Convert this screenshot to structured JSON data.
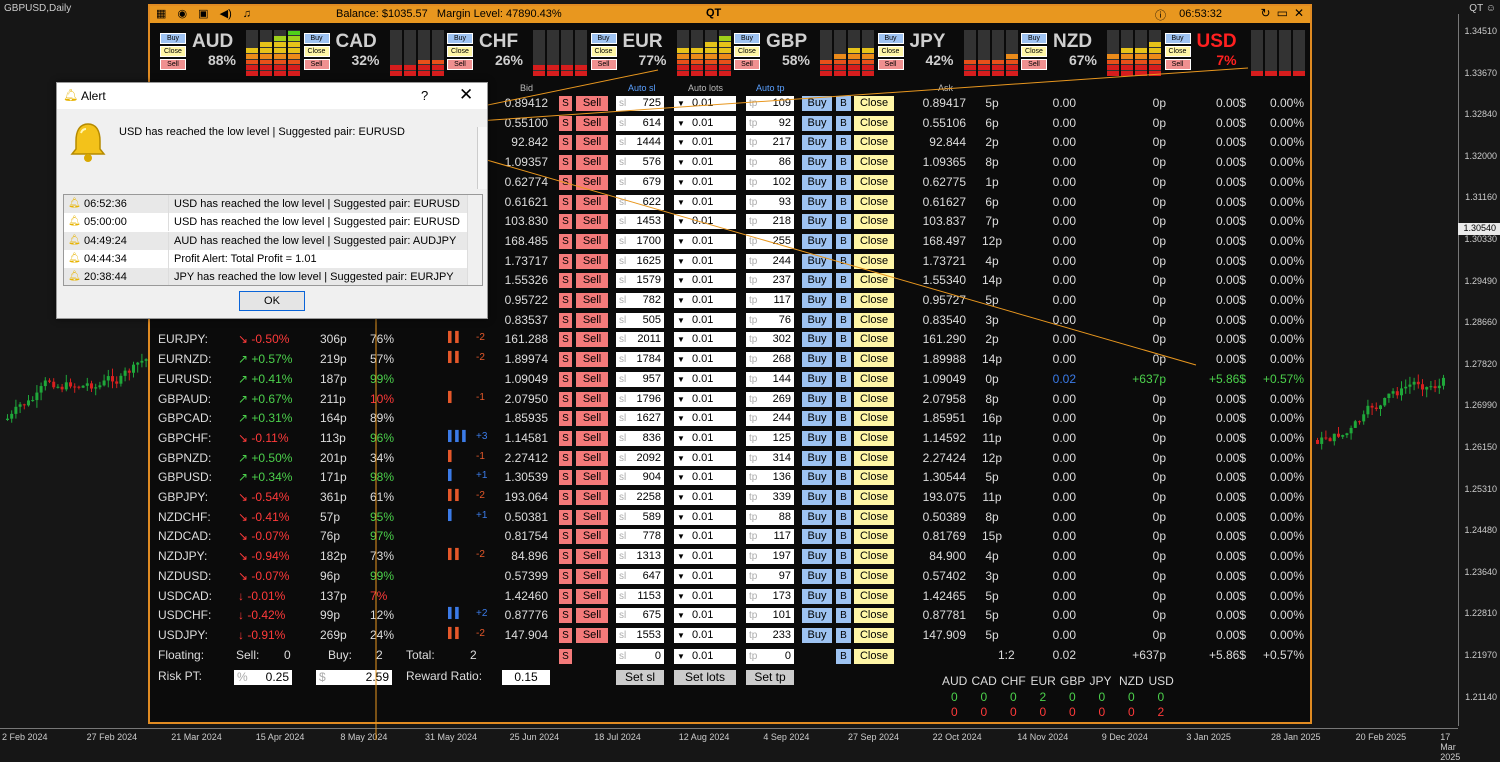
{
  "chart": {
    "symbol": "GBPUSD,Daily",
    "top_right": "QT ☺",
    "current_price": "1.30540",
    "prices": [
      "1.34510",
      "1.33670",
      "1.32840",
      "1.32000",
      "1.31160",
      "1.30330",
      "1.29490",
      "1.28660",
      "1.27820",
      "1.26990",
      "1.26150",
      "1.25310",
      "1.24480",
      "1.23640",
      "1.22810",
      "1.21970",
      "1.21140"
    ],
    "dates": [
      "2 Feb 2024",
      "27 Feb 2024",
      "21 Mar 2024",
      "15 Apr 2024",
      "8 May 2024",
      "31 May 2024",
      "25 Jun 2024",
      "18 Jul 2024",
      "12 Aug 2024",
      "4 Sep 2024",
      "27 Sep 2024",
      "22 Oct 2024",
      "14 Nov 2024",
      "9 Dec 2024",
      "3 Jan 2025",
      "28 Jan 2025",
      "20 Feb 2025",
      "17 Mar 2025"
    ]
  },
  "titlebar": {
    "balance": "Balance: $1035.57",
    "margin": "Margin Level: 47890.43%",
    "title": "QT",
    "clock": "06:53:32"
  },
  "currencies": [
    {
      "name": "AUD",
      "pct": "88%",
      "level": 0.88,
      "alert": false
    },
    {
      "name": "CAD",
      "pct": "32%",
      "level": 0.32,
      "alert": false
    },
    {
      "name": "CHF",
      "pct": "26%",
      "level": 0.26,
      "alert": false
    },
    {
      "name": "EUR",
      "pct": "77%",
      "level": 0.77,
      "alert": false
    },
    {
      "name": "GBP",
      "pct": "58%",
      "level": 0.58,
      "alert": false
    },
    {
      "name": "JPY",
      "pct": "42%",
      "level": 0.42,
      "alert": false
    },
    {
      "name": "NZD",
      "pct": "67%",
      "level": 0.67,
      "alert": false
    },
    {
      "name": "USD",
      "pct": "7%",
      "level": 0.07,
      "alert": true
    }
  ],
  "mini_buttons": {
    "buy": "Buy",
    "close": "Close",
    "sell": "Sell"
  },
  "headers": {
    "bid": "Bid",
    "auto_sl": "Auto sl",
    "auto_lots": "Auto lots",
    "auto_tp": "Auto tp",
    "ask": "Ask"
  },
  "labels": {
    "s": "S",
    "sell": "Sell",
    "sl": "sl",
    "tp": "tp",
    "buy": "Buy",
    "b": "B",
    "close": "Close"
  },
  "rows": [
    {
      "pair": "",
      "chg": "",
      "dir": "",
      "pips": "",
      "ratio": "",
      "str": "",
      "strn": "",
      "bid": "0.89412",
      "sl": "725",
      "lots": "0.01",
      "tp": "109",
      "ask": "0.89417",
      "spread": "5p",
      "profit": "0.00",
      "pippl": "0p",
      "money": "0.00$",
      "pct": "0.00%"
    },
    {
      "pair": "",
      "chg": "",
      "dir": "",
      "pips": "",
      "ratio": "",
      "str": "",
      "strn": "",
      "bid": "0.55100",
      "sl": "614",
      "lots": "0.01",
      "tp": "92",
      "ask": "0.55106",
      "spread": "6p",
      "profit": "0.00",
      "pippl": "0p",
      "money": "0.00$",
      "pct": "0.00%"
    },
    {
      "pair": "",
      "chg": "",
      "dir": "",
      "pips": "",
      "ratio": "",
      "str": "",
      "strn": "",
      "bid": "92.842",
      "sl": "1444",
      "lots": "0.01",
      "tp": "217",
      "ask": "92.844",
      "spread": "2p",
      "profit": "0.00",
      "pippl": "0p",
      "money": "0.00$",
      "pct": "0.00%"
    },
    {
      "pair": "",
      "chg": "",
      "dir": "",
      "pips": "",
      "ratio": "",
      "str": "",
      "strn": "",
      "bid": "1.09357",
      "sl": "576",
      "lots": "0.01",
      "tp": "86",
      "ask": "1.09365",
      "spread": "8p",
      "profit": "0.00",
      "pippl": "0p",
      "money": "0.00$",
      "pct": "0.00%"
    },
    {
      "pair": "",
      "chg": "",
      "dir": "",
      "pips": "",
      "ratio": "",
      "str": "",
      "strn": "",
      "bid": "0.62774",
      "sl": "679",
      "lots": "0.01",
      "tp": "102",
      "ask": "0.62775",
      "spread": "1p",
      "profit": "0.00",
      "pippl": "0p",
      "money": "0.00$",
      "pct": "0.00%"
    },
    {
      "pair": "",
      "chg": "",
      "dir": "",
      "pips": "",
      "ratio": "",
      "str": "",
      "strn": "",
      "bid": "0.61621",
      "sl": "622",
      "lots": "0.01",
      "tp": "93",
      "ask": "0.61627",
      "spread": "6p",
      "profit": "0.00",
      "pippl": "0p",
      "money": "0.00$",
      "pct": "0.00%"
    },
    {
      "pair": "",
      "chg": "",
      "dir": "",
      "pips": "",
      "ratio": "",
      "str": "",
      "strn": "",
      "bid": "103.830",
      "sl": "1453",
      "lots": "0.01",
      "tp": "218",
      "ask": "103.837",
      "spread": "7p",
      "profit": "0.00",
      "pippl": "0p",
      "money": "0.00$",
      "pct": "0.00%"
    },
    {
      "pair": "",
      "chg": "",
      "dir": "",
      "pips": "",
      "ratio": "",
      "str": "",
      "strn": "",
      "bid": "168.485",
      "sl": "1700",
      "lots": "0.01",
      "tp": "255",
      "ask": "168.497",
      "spread": "12p",
      "profit": "0.00",
      "pippl": "0p",
      "money": "0.00$",
      "pct": "0.00%"
    },
    {
      "pair": "",
      "chg": "",
      "dir": "",
      "pips": "",
      "ratio": "",
      "str": "",
      "strn": "",
      "bid": "1.73717",
      "sl": "1625",
      "lots": "0.01",
      "tp": "244",
      "ask": "1.73721",
      "spread": "4p",
      "profit": "0.00",
      "pippl": "0p",
      "money": "0.00$",
      "pct": "0.00%"
    },
    {
      "pair": "",
      "chg": "",
      "dir": "",
      "pips": "",
      "ratio": "",
      "str": "",
      "strn": "",
      "bid": "1.55326",
      "sl": "1579",
      "lots": "0.01",
      "tp": "237",
      "ask": "1.55340",
      "spread": "14p",
      "profit": "0.00",
      "pippl": "0p",
      "money": "0.00$",
      "pct": "0.00%"
    },
    {
      "pair": "",
      "chg": "",
      "dir": "",
      "pips": "",
      "ratio": "",
      "str": "",
      "strn": "",
      "bid": "0.95722",
      "sl": "782",
      "lots": "0.01",
      "tp": "117",
      "ask": "0.95727",
      "spread": "5p",
      "profit": "0.00",
      "pippl": "0p",
      "money": "0.00$",
      "pct": "0.00%"
    },
    {
      "pair": "",
      "chg": "",
      "dir": "",
      "pips": "",
      "ratio": "",
      "str": "",
      "strn": "",
      "bid": "0.83537",
      "sl": "505",
      "lots": "0.01",
      "tp": "76",
      "ask": "0.83540",
      "spread": "3p",
      "profit": "0.00",
      "pippl": "0p",
      "money": "0.00$",
      "pct": "0.00%"
    },
    {
      "pair": "EURJPY:",
      "chg": "-0.50%",
      "dir": "dn",
      "pips": "306p",
      "ratio": "76%",
      "str": "▌▌",
      "strn": "-2",
      "bid": "161.288",
      "sl": "2011",
      "lots": "0.01",
      "tp": "302",
      "ask": "161.290",
      "spread": "2p",
      "profit": "0.00",
      "pippl": "0p",
      "money": "0.00$",
      "pct": "0.00%"
    },
    {
      "pair": "EURNZD:",
      "chg": "+0.57%",
      "dir": "up",
      "pips": "219p",
      "ratio": "57%",
      "str": "▌▌",
      "strn": "-2",
      "bid": "1.89974",
      "sl": "1784",
      "lots": "0.01",
      "tp": "268",
      "ask": "1.89988",
      "spread": "14p",
      "profit": "0.00",
      "pippl": "0p",
      "money": "0.00$",
      "pct": "0.00%"
    },
    {
      "pair": "EURUSD:",
      "chg": "+0.41%",
      "dir": "up",
      "pips": "187p",
      "ratio": "99%",
      "str": "",
      "strn": "",
      "bid": "1.09049",
      "sl": "957",
      "lots": "0.01",
      "tp": "144",
      "ask": "1.09049",
      "spread": "0p",
      "profit": "0.02",
      "pippl": "+637p",
      "money": "+5.86$",
      "pct": "+0.57%",
      "hl": true
    },
    {
      "pair": "GBPAUD:",
      "chg": "+0.67%",
      "dir": "up",
      "pips": "211p",
      "ratio": "10%",
      "str": "▌",
      "strn": "-1",
      "bid": "2.07950",
      "sl": "1796",
      "lots": "0.01",
      "tp": "269",
      "ask": "2.07958",
      "spread": "8p",
      "profit": "0.00",
      "pippl": "0p",
      "money": "0.00$",
      "pct": "0.00%"
    },
    {
      "pair": "GBPCAD:",
      "chg": "+0.31%",
      "dir": "up",
      "pips": "164p",
      "ratio": "89%",
      "str": "",
      "strn": "",
      "bid": "1.85935",
      "sl": "1627",
      "lots": "0.01",
      "tp": "244",
      "ask": "1.85951",
      "spread": "16p",
      "profit": "0.00",
      "pippl": "0p",
      "money": "0.00$",
      "pct": "0.00%"
    },
    {
      "pair": "GBPCHF:",
      "chg": "-0.11%",
      "dir": "dn",
      "pips": "113p",
      "ratio": "96%",
      "str": "▌▌▌",
      "strn": "+3",
      "bid": "1.14581",
      "sl": "836",
      "lots": "0.01",
      "tp": "125",
      "ask": "1.14592",
      "spread": "11p",
      "profit": "0.00",
      "pippl": "0p",
      "money": "0.00$",
      "pct": "0.00%"
    },
    {
      "pair": "GBPNZD:",
      "chg": "+0.50%",
      "dir": "up",
      "pips": "201p",
      "ratio": "34%",
      "str": "▌",
      "strn": "-1",
      "bid": "2.27412",
      "sl": "2092",
      "lots": "0.01",
      "tp": "314",
      "ask": "2.27424",
      "spread": "12p",
      "profit": "0.00",
      "pippl": "0p",
      "money": "0.00$",
      "pct": "0.00%"
    },
    {
      "pair": "GBPUSD:",
      "chg": "+0.34%",
      "dir": "up",
      "pips": "171p",
      "ratio": "98%",
      "str": "▌",
      "strn": "+1",
      "bid": "1.30539",
      "sl": "904",
      "lots": "0.01",
      "tp": "136",
      "ask": "1.30544",
      "spread": "5p",
      "profit": "0.00",
      "pippl": "0p",
      "money": "0.00$",
      "pct": "0.00%"
    },
    {
      "pair": "GBPJPY:",
      "chg": "-0.54%",
      "dir": "dn",
      "pips": "361p",
      "ratio": "61%",
      "str": "▌▌",
      "strn": "-2",
      "bid": "193.064",
      "sl": "2258",
      "lots": "0.01",
      "tp": "339",
      "ask": "193.075",
      "spread": "11p",
      "profit": "0.00",
      "pippl": "0p",
      "money": "0.00$",
      "pct": "0.00%"
    },
    {
      "pair": "NZDCHF:",
      "chg": "-0.41%",
      "dir": "dn",
      "pips": "57p",
      "ratio": "95%",
      "str": "▌",
      "strn": "+1",
      "bid": "0.50381",
      "sl": "589",
      "lots": "0.01",
      "tp": "88",
      "ask": "0.50389",
      "spread": "8p",
      "profit": "0.00",
      "pippl": "0p",
      "money": "0.00$",
      "pct": "0.00%"
    },
    {
      "pair": "NZDCAD:",
      "chg": "-0.07%",
      "dir": "dn",
      "pips": "76p",
      "ratio": "97%",
      "str": "",
      "strn": "",
      "bid": "0.81754",
      "sl": "778",
      "lots": "0.01",
      "tp": "117",
      "ask": "0.81769",
      "spread": "15p",
      "profit": "0.00",
      "pippl": "0p",
      "money": "0.00$",
      "pct": "0.00%"
    },
    {
      "pair": "NZDJPY:",
      "chg": "-0.94%",
      "dir": "dn",
      "pips": "182p",
      "ratio": "73%",
      "str": "▌▌",
      "strn": "-2",
      "bid": "84.896",
      "sl": "1313",
      "lots": "0.01",
      "tp": "197",
      "ask": "84.900",
      "spread": "4p",
      "profit": "0.00",
      "pippl": "0p",
      "money": "0.00$",
      "pct": "0.00%"
    },
    {
      "pair": "NZDUSD:",
      "chg": "-0.07%",
      "dir": "dn",
      "pips": "96p",
      "ratio": "99%",
      "str": "",
      "strn": "",
      "bid": "0.57399",
      "sl": "647",
      "lots": "0.01",
      "tp": "97",
      "ask": "0.57402",
      "spread": "3p",
      "profit": "0.00",
      "pippl": "0p",
      "money": "0.00$",
      "pct": "0.00%"
    },
    {
      "pair": "USDCAD:",
      "chg": "-0.01%",
      "dir": "dd",
      "pips": "137p",
      "ratio": "7%",
      "str": "",
      "strn": "",
      "bid": "1.42460",
      "sl": "1153",
      "lots": "0.01",
      "tp": "173",
      "ask": "1.42465",
      "spread": "5p",
      "profit": "0.00",
      "pippl": "0p",
      "money": "0.00$",
      "pct": "0.00%"
    },
    {
      "pair": "USDCHF:",
      "chg": "-0.42%",
      "dir": "dd",
      "pips": "99p",
      "ratio": "12%",
      "str": "▌▌",
      "strn": "+2",
      "bid": "0.87776",
      "sl": "675",
      "lots": "0.01",
      "tp": "101",
      "ask": "0.87781",
      "spread": "5p",
      "profit": "0.00",
      "pippl": "0p",
      "money": "0.00$",
      "pct": "0.00%"
    },
    {
      "pair": "USDJPY:",
      "chg": "-0.91%",
      "dir": "dd",
      "pips": "269p",
      "ratio": "24%",
      "str": "▌▌",
      "strn": "-2",
      "bid": "147.904",
      "sl": "1553",
      "lots": "0.01",
      "tp": "233",
      "ask": "147.909",
      "spread": "5p",
      "profit": "0.00",
      "pippl": "0p",
      "money": "0.00$",
      "pct": "0.00%"
    }
  ],
  "footer": {
    "floating": "Floating:",
    "sell_label": "Sell:",
    "sell_val": "0",
    "buy_label": "Buy:",
    "buy_val": "2",
    "total_label": "Total:",
    "total_val": "2",
    "sl_val": "0",
    "lots_val": "0.01",
    "tp_val": "0",
    "ratio": "1:2",
    "profit": "0.02",
    "pippl": "+637p",
    "money": "+5.86$",
    "pct": "+0.57%",
    "risk_label": "Risk PT:",
    "risk_pct": "%",
    "risk_val": "0.25",
    "risk_dollar": "$",
    "risk_dollar_val": "2.59",
    "reward_label": "Reward Ratio:",
    "reward_val": "0.15",
    "set_sl": "Set sl",
    "set_lots": "Set lots",
    "set_tp": "Set tp"
  },
  "ccy_summary": {
    "names": [
      "AUD",
      "CAD",
      "CHF",
      "EUR",
      "GBP",
      "JPY",
      "NZD",
      "USD"
    ],
    "buy": [
      "0",
      "0",
      "0",
      "2",
      "0",
      "0",
      "0",
      "0"
    ],
    "sell": [
      "0",
      "0",
      "0",
      "0",
      "0",
      "0",
      "0",
      "2"
    ]
  },
  "alert": {
    "title": "Alert",
    "help": "?",
    "close": "✕",
    "message": "USD has reached the low level | Suggested pair: EURUSD",
    "ok": "OK",
    "log": [
      {
        "time": "06:52:36",
        "msg": "USD has reached the low level | Suggested pair: EURUSD"
      },
      {
        "time": "05:00:00",
        "msg": "USD has reached the low level | Suggested pair: EURUSD"
      },
      {
        "time": "04:49:24",
        "msg": "AUD has reached the low level | Suggested pair: AUDJPY"
      },
      {
        "time": "04:44:34",
        "msg": "Profit Alert: Total Profit = 1.01"
      },
      {
        "time": "20:38:44",
        "msg": "JPY has reached the low level | Suggested pair: EURJPY"
      }
    ]
  },
  "colors": {
    "accent": "#e8971f",
    "buy": "#9ec3f2",
    "sell": "#f47a7a",
    "close": "#fff6a6",
    "up": "#4cd14c",
    "down": "#ff3a3a"
  }
}
